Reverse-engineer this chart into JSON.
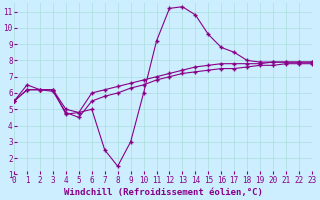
{
  "xlabel": "Windchill (Refroidissement éolien,°C)",
  "bg_color": "#cceeff",
  "line_color": "#880088",
  "marker": "+",
  "markersize": 3.5,
  "linewidth": 0.8,
  "hours": [
    0,
    1,
    2,
    3,
    4,
    5,
    6,
    7,
    8,
    9,
    10,
    11,
    12,
    13,
    14,
    15,
    16,
    17,
    18,
    19,
    20,
    21,
    22,
    23
  ],
  "line_top": [
    5.5,
    6.2,
    6.2,
    6.2,
    5.0,
    4.8,
    6.0,
    6.2,
    6.4,
    6.6,
    6.8,
    7.0,
    7.2,
    7.4,
    7.6,
    7.7,
    7.8,
    7.8,
    7.8,
    7.8,
    7.9,
    7.9,
    7.9,
    7.9
  ],
  "line_mid": [
    5.5,
    6.2,
    6.2,
    6.1,
    4.8,
    4.5,
    5.5,
    5.8,
    6.0,
    6.3,
    6.5,
    6.8,
    7.0,
    7.2,
    7.3,
    7.4,
    7.5,
    7.5,
    7.6,
    7.7,
    7.7,
    7.8,
    7.8,
    7.8
  ],
  "line_jagged": [
    5.5,
    6.5,
    6.2,
    6.2,
    4.7,
    4.8,
    5.0,
    2.5,
    1.5,
    3.0,
    6.0,
    9.2,
    11.2,
    11.3,
    10.8,
    9.6,
    8.8,
    8.5,
    8.0,
    7.9,
    7.9,
    7.9,
    7.9,
    7.9
  ],
  "xlim": [
    0,
    23
  ],
  "ylim": [
    1,
    11.5
  ],
  "yticks": [
    1,
    2,
    3,
    4,
    5,
    6,
    7,
    8,
    9,
    10,
    11
  ],
  "xticks": [
    0,
    1,
    2,
    3,
    4,
    5,
    6,
    7,
    8,
    9,
    10,
    11,
    12,
    13,
    14,
    15,
    16,
    17,
    18,
    19,
    20,
    21,
    22,
    23
  ],
  "grid_color": "#aadddd",
  "tick_color": "#880088",
  "xlabel_fontsize": 6.5,
  "tick_fontsize": 5.5
}
